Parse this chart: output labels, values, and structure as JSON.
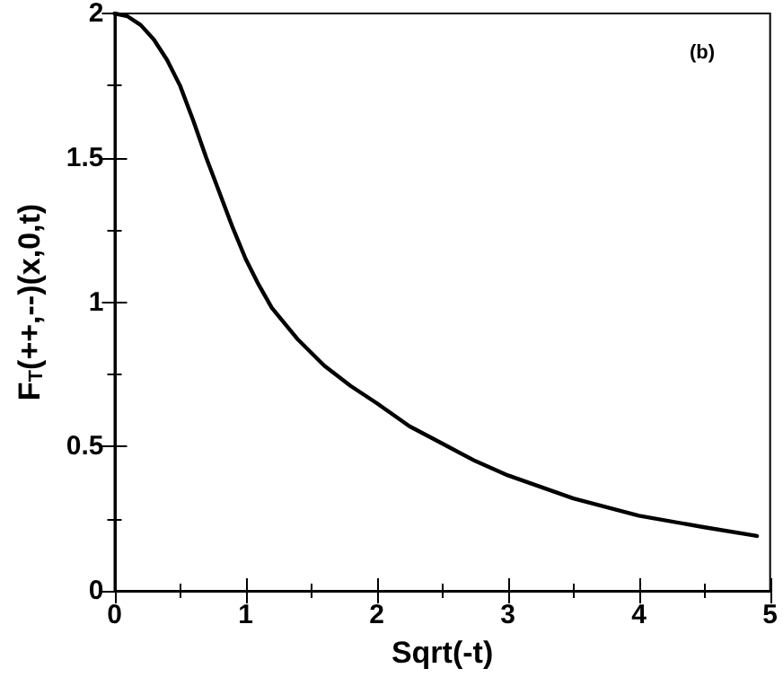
{
  "chart_data": {
    "type": "line",
    "xlabel": "Sqrt(-t)",
    "ylabel": "F$_{T}$(++,--)(x,0,t)",
    "annotations": [
      "(b)"
    ],
    "x": [
      0,
      0.1,
      0.2,
      0.3,
      0.4,
      0.5,
      0.6,
      0.7,
      0.8,
      0.9,
      1.0,
      1.1,
      1.2,
      1.4,
      1.6,
      1.8,
      2.0,
      2.25,
      2.5,
      2.75,
      3.0,
      3.5,
      4.0,
      4.5,
      4.9
    ],
    "series": [
      {
        "color": "#000000",
        "values": [
          2.0,
          1.99,
          1.96,
          1.91,
          1.84,
          1.75,
          1.63,
          1.5,
          1.38,
          1.26,
          1.15,
          1.06,
          0.98,
          0.87,
          0.78,
          0.71,
          0.65,
          0.57,
          0.51,
          0.45,
          0.4,
          0.32,
          0.26,
          0.22,
          0.19
        ]
      }
    ],
    "xlim": [
      0,
      5
    ],
    "xticks": [
      0,
      1,
      2,
      3,
      4,
      5
    ],
    "ylim": [
      0,
      2
    ],
    "yticks": [
      0,
      0.5,
      1,
      1.5,
      2
    ],
    "marker": "none",
    "line_style": "solid"
  }
}
